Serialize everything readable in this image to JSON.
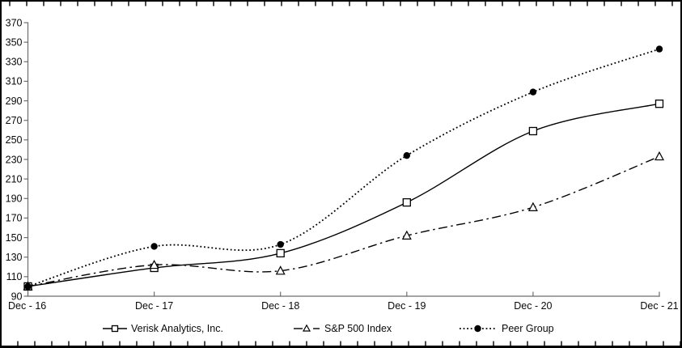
{
  "chart_data": {
    "type": "line",
    "title": "",
    "xlabel": "",
    "ylabel": "",
    "categories": [
      "Dec - 16",
      "Dec - 17",
      "Dec - 18",
      "Dec - 19",
      "Dec - 20",
      "Dec - 21"
    ],
    "series": [
      {
        "name": "Verisk Analytics, Inc.",
        "line_style": "solid",
        "marker": "open-square",
        "values": [
          100,
          119,
          134,
          186,
          259,
          287
        ]
      },
      {
        "name": "S&P 500 Index",
        "line_style": "dash-dot",
        "marker": "open-triangle",
        "values": [
          100,
          122,
          116,
          152,
          181,
          233
        ]
      },
      {
        "name": "Peer Group",
        "line_style": "dotted",
        "marker": "filled-circle",
        "values": [
          100,
          141,
          143,
          234,
          299,
          343
        ]
      }
    ],
    "ylim": [
      90,
      370
    ],
    "y_ticks": [
      90,
      110,
      130,
      150,
      170,
      190,
      210,
      230,
      250,
      270,
      290,
      310,
      330,
      350,
      370
    ],
    "grid": "off",
    "legend_position": "bottom",
    "series_color": "#000000",
    "axis_color": "#6e6e6e",
    "tick_label_color": "#0a0a0a",
    "background": "#ffffff"
  }
}
